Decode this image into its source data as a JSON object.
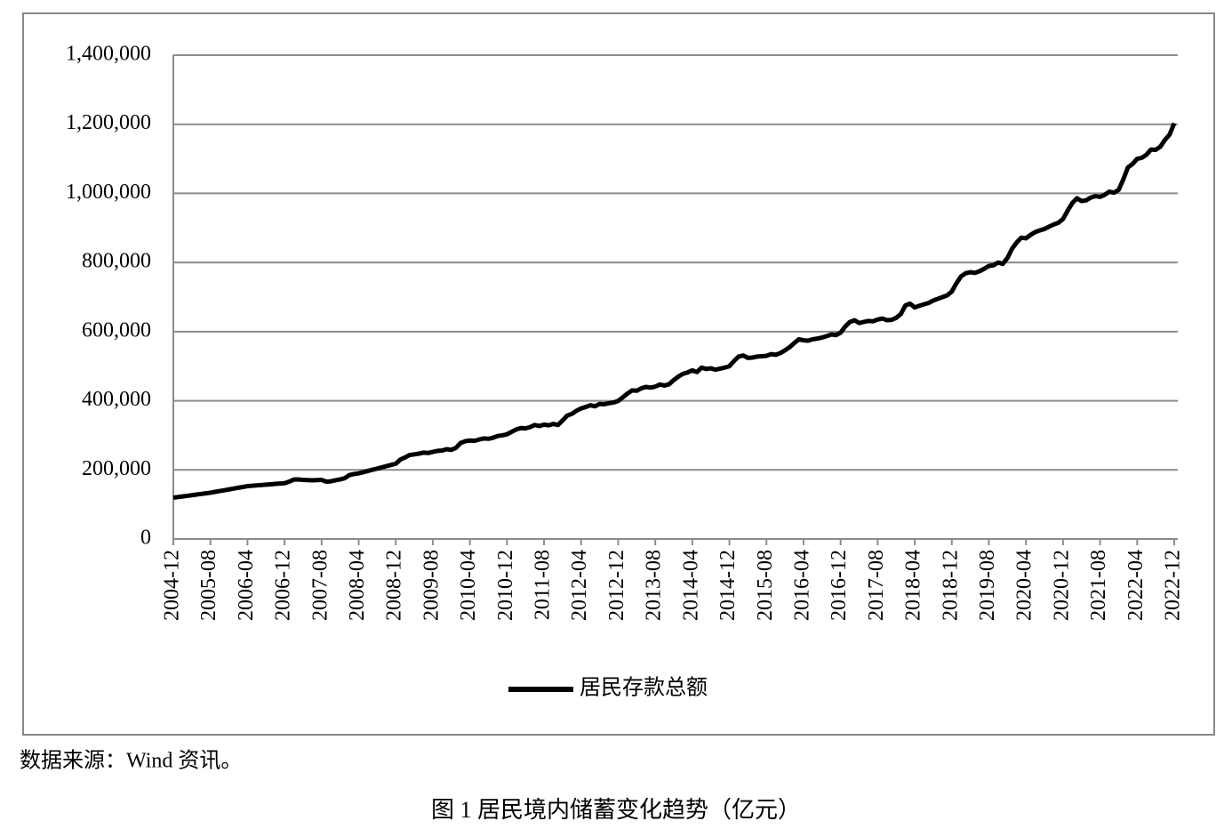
{
  "chart_data": {
    "type": "line",
    "categories": [
      "2004-12",
      null,
      null,
      null,
      null,
      null,
      null,
      null,
      "2005-08",
      null,
      null,
      null,
      null,
      null,
      null,
      null,
      "2006-04",
      null,
      null,
      null,
      null,
      null,
      null,
      null,
      "2006-12",
      null,
      null,
      null,
      null,
      null,
      null,
      null,
      "2007-08",
      null,
      null,
      null,
      null,
      null,
      null,
      null,
      "2008-04",
      null,
      null,
      null,
      null,
      null,
      null,
      null,
      "2008-12",
      null,
      null,
      null,
      null,
      null,
      null,
      null,
      "2009-08",
      null,
      null,
      null,
      null,
      null,
      null,
      null,
      "2010-04",
      null,
      null,
      null,
      null,
      null,
      null,
      null,
      "2010-12",
      null,
      null,
      null,
      null,
      null,
      null,
      null,
      "2011-08",
      null,
      null,
      null,
      null,
      null,
      null,
      null,
      "2012-04",
      null,
      null,
      null,
      null,
      null,
      null,
      null,
      "2012-12",
      null,
      null,
      null,
      null,
      null,
      null,
      null,
      "2013-08",
      null,
      null,
      null,
      null,
      null,
      null,
      null,
      "2014-04",
      null,
      null,
      null,
      null,
      null,
      null,
      null,
      "2014-12",
      null,
      null,
      null,
      null,
      null,
      null,
      null,
      "2015-08",
      null,
      null,
      null,
      null,
      null,
      null,
      null,
      "2016-04",
      null,
      null,
      null,
      null,
      null,
      null,
      null,
      "2016-12",
      null,
      null,
      null,
      null,
      null,
      null,
      null,
      "2017-08",
      null,
      null,
      null,
      null,
      null,
      null,
      null,
      "2018-04",
      null,
      null,
      null,
      null,
      null,
      null,
      null,
      "2018-12",
      null,
      null,
      null,
      null,
      null,
      null,
      null,
      "2019-08",
      null,
      null,
      null,
      null,
      null,
      null,
      null,
      "2020-04",
      null,
      null,
      null,
      null,
      null,
      null,
      null,
      "2020-12",
      null,
      null,
      null,
      null,
      null,
      null,
      null,
      "2021-08",
      null,
      null,
      null,
      null,
      null,
      null,
      null,
      "2022-04",
      null,
      null,
      null,
      null,
      null,
      null,
      null,
      "2022-12"
    ],
    "series": [
      {
        "name": "居民存款总额",
        "color": "#000000",
        "values": [
          119600,
          121400,
          123200,
          125000,
          126800,
          128600,
          130400,
          132200,
          134000,
          136400,
          138800,
          141100,
          143500,
          145900,
          148300,
          150600,
          153000,
          154100,
          155200,
          156200,
          157300,
          158400,
          159500,
          160500,
          161600,
          166000,
          172000,
          172500,
          171000,
          170500,
          170000,
          170500,
          171000,
          166000,
          167000,
          170000,
          172500,
          176000,
          185000,
          188000,
          190000,
          193500,
          197000,
          200500,
          203900,
          207400,
          210900,
          214400,
          217900,
          230000,
          236000,
          243000,
          245000,
          247000,
          250000,
          249000,
          252000,
          255000,
          256000,
          260000,
          258000,
          264000,
          278000,
          283000,
          285000,
          284000,
          288000,
          291000,
          290000,
          293000,
          298000,
          300000,
          303000,
          310000,
          317000,
          321000,
          320000,
          324000,
          330000,
          327000,
          331000,
          329000,
          333000,
          330000,
          343000,
          357000,
          362000,
          371000,
          378000,
          382000,
          387000,
          384000,
          391000,
          390000,
          393000,
          395000,
          399600,
          410000,
          421000,
          430000,
          429000,
          436000,
          440000,
          438000,
          441000,
          447000,
          444000,
          448000,
          460000,
          470000,
          478000,
          482000,
          488000,
          483000,
          496000,
          492000,
          494000,
          490000,
          493000,
          496000,
          500000,
          515000,
          528000,
          531000,
          524000,
          525000,
          528000,
          529000,
          530000,
          535000,
          533000,
          538000,
          546000,
          555000,
          567000,
          578000,
          575000,
          574000,
          578000,
          580000,
          583000,
          587000,
          592000,
          590000,
          597000,
          615000,
          628000,
          633000,
          625000,
          628000,
          631000,
          630000,
          635000,
          638000,
          633000,
          634000,
          640000,
          651000,
          676000,
          681000,
          670000,
          675000,
          679000,
          683000,
          690000,
          695000,
          700000,
          705000,
          716000,
          740000,
          760000,
          769000,
          772000,
          770000,
          775000,
          782000,
          790000,
          792000,
          800000,
          796000,
          813000,
          840000,
          858000,
          872000,
          870000,
          880000,
          888000,
          893000,
          897000,
          904000,
          910000,
          915000,
          926000,
          950000,
          972000,
          986000,
          978000,
          980000,
          988000,
          992000,
          990000,
          996000,
          1005000,
          1002000,
          1010000,
          1040000,
          1075000,
          1085000,
          1100000,
          1103000,
          1112000,
          1127000,
          1126000,
          1135000,
          1155000,
          1170000,
          1203000
        ]
      }
    ],
    "ylim": [
      0,
      1400000
    ],
    "yticks": [
      0,
      {
        "value": 200000,
        "label": "200,000"
      },
      {
        "value": 400000,
        "label": "400,000"
      },
      {
        "value": 600000,
        "label": "600,000"
      },
      {
        "value": 800000,
        "label": "800,000"
      },
      {
        "value": 1000000,
        "label": "1,000,000"
      },
      {
        "value": 1200000,
        "label": "1,200,000"
      },
      {
        "value": 1400000,
        "label": "1,400,000"
      }
    ],
    "grid": true,
    "legend": "bottom",
    "note": "数据来源：Wind 资讯。",
    "caption": "图 1  居民境内储蓄变化趋势（亿元）"
  }
}
